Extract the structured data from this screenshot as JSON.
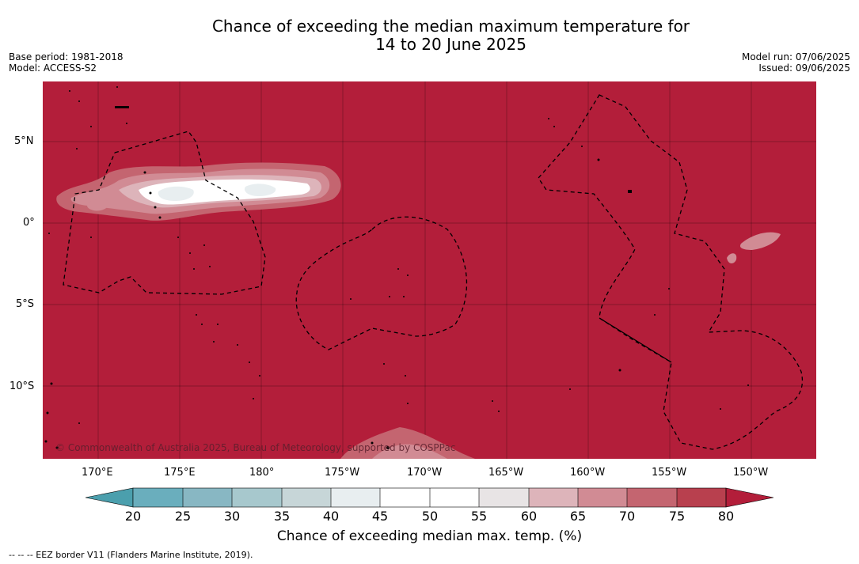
{
  "header": {
    "title_line1": "Chance of exceeding the median maximum temperature for",
    "title_line2": "14 to 20 June 2025",
    "base_period": "Base period: 1981-2018",
    "model": "Model: ACCESS-S2",
    "model_run": "Model run: 07/06/2025",
    "issued": "Issued: 09/06/2025"
  },
  "map": {
    "lat_labels": [
      "5°N",
      "0°",
      "5°S",
      "10°S"
    ],
    "lon_labels": [
      "170°E",
      "175°E",
      "180°",
      "175°W",
      "170°W",
      "165°W",
      "160°W",
      "155°W",
      "150°W"
    ],
    "copyright": "© Commonwealth of Australia 2025, Bureau of Meteorology, supported by COSPPac",
    "colors": {
      "background": "#b31e3a",
      "land": "#000000"
    }
  },
  "colorbar": {
    "title": "Chance of exceeding median max. temp. (%)",
    "ticks": [
      "20",
      "25",
      "30",
      "35",
      "40",
      "45",
      "50",
      "55",
      "60",
      "65",
      "70",
      "75",
      "80"
    ],
    "colors": [
      "#4b9fad",
      "#6aaebd",
      "#88b7c3",
      "#a7c8cd",
      "#c7d6d8",
      "#e8eef0",
      "#ffffff",
      "#ffffff",
      "#e8e4e5",
      "#ddb4ba",
      "#d18b94",
      "#c46570",
      "#b8404e",
      "#b31e3a"
    ]
  },
  "footer": {
    "legend": "--  --  -- EEZ border V11 (Flanders Marine Institute, 2019)."
  }
}
